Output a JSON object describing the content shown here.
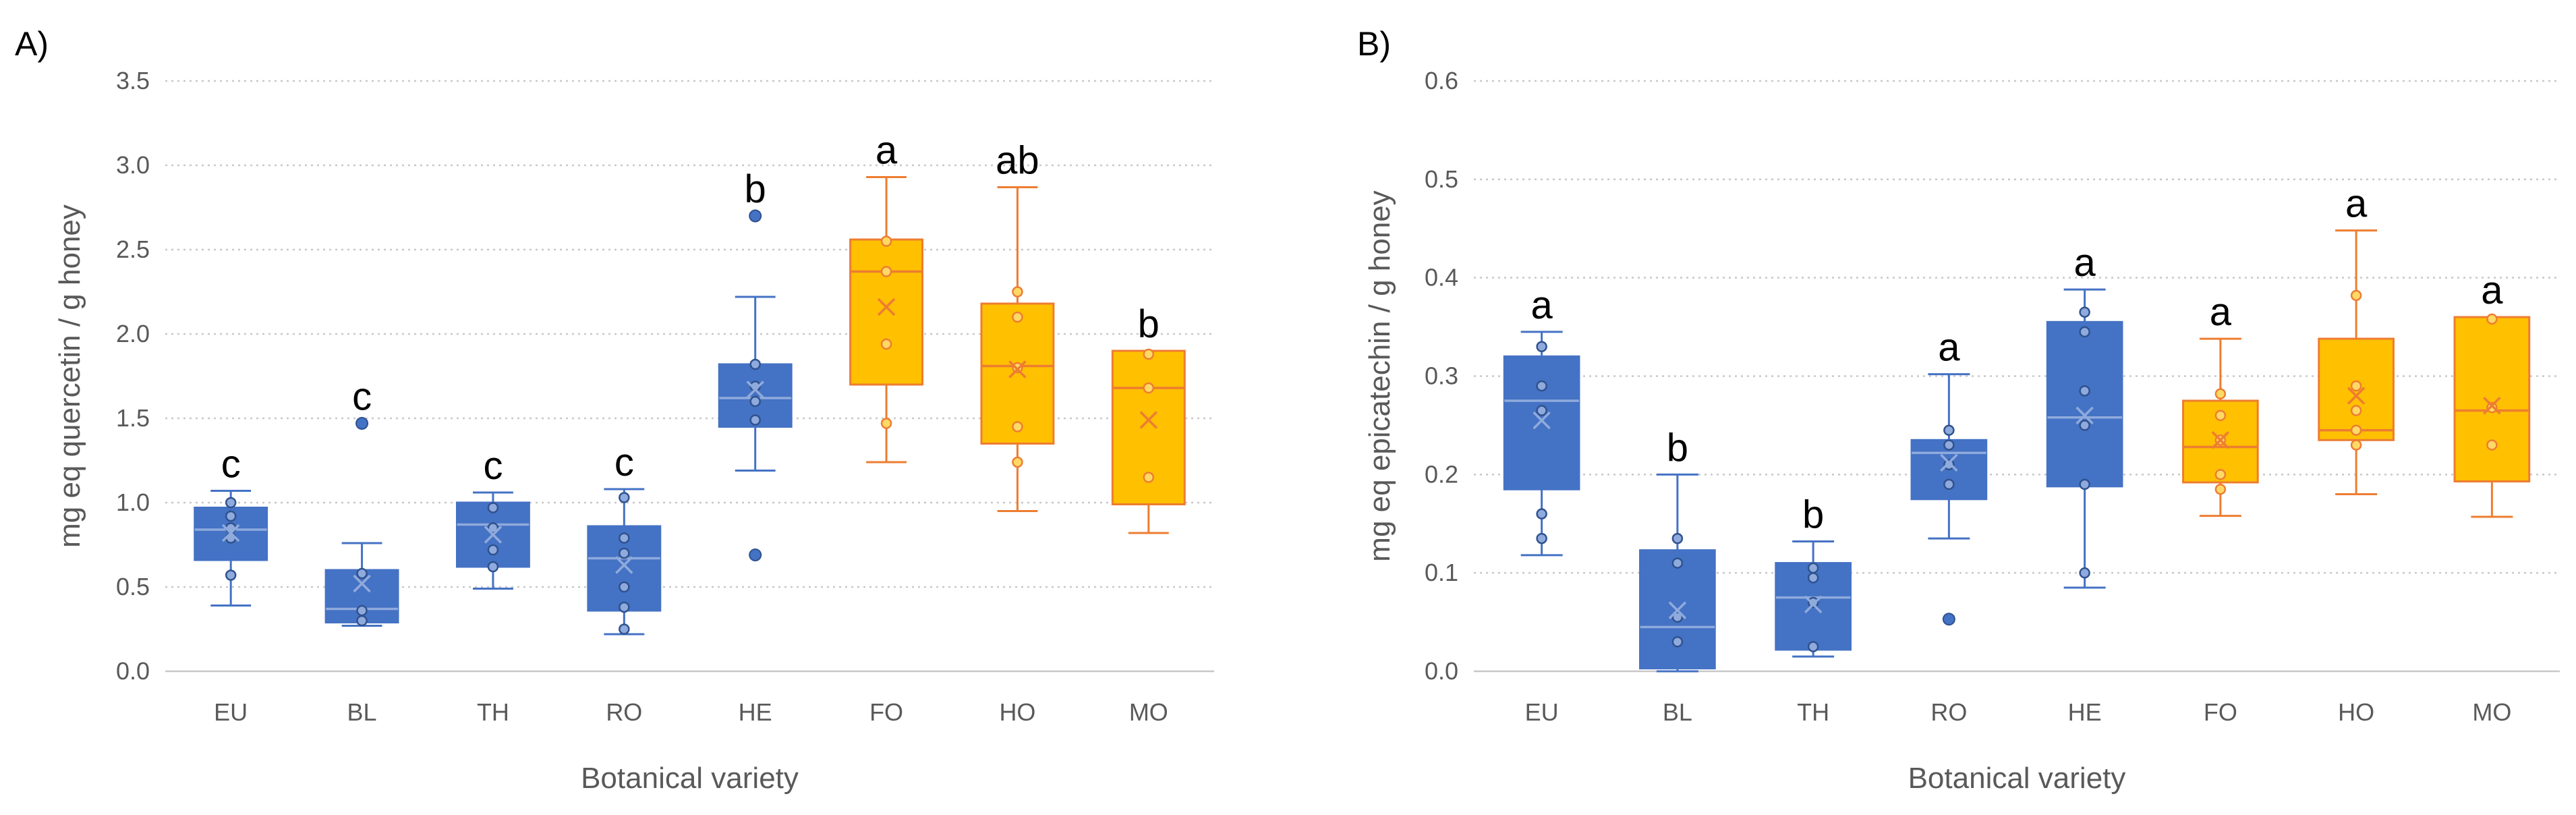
{
  "chart_data": [
    {
      "type": "box",
      "panel_label": "A)",
      "xlabel": "Botanical variety",
      "ylabel": "mg eq quercetin / g honey",
      "ylim": [
        0,
        3.5
      ],
      "yticks": [
        "0.0",
        "0.5",
        "1.0",
        "1.5",
        "2.0",
        "2.5",
        "3.0",
        "3.5"
      ],
      "grid": "horizontal dotted",
      "colors": {
        "blue": "#4472C4",
        "orange": "#FFC000",
        "orange_edge": "#ED7D31"
      },
      "categories": [
        {
          "label": "EU",
          "color": "blue",
          "letter": "c",
          "whisker_low": 0.39,
          "q1": 0.66,
          "median": 0.84,
          "q3": 0.97,
          "whisker_high": 1.07,
          "mean": 0.82,
          "points": [
            0.57,
            0.79,
            0.85,
            0.92,
            1.0
          ],
          "outliers": []
        },
        {
          "label": "BL",
          "color": "blue",
          "letter": "c",
          "whisker_low": 0.27,
          "q1": 0.29,
          "median": 0.37,
          "q3": 0.6,
          "whisker_high": 0.76,
          "mean": 0.52,
          "points": [
            0.3,
            0.36,
            0.58
          ],
          "outliers": [
            1.47
          ]
        },
        {
          "label": "TH",
          "color": "blue",
          "letter": "c",
          "whisker_low": 0.49,
          "q1": 0.62,
          "median": 0.87,
          "q3": 1.0,
          "whisker_high": 1.06,
          "mean": 0.81,
          "points": [
            0.62,
            0.72,
            0.85,
            0.97
          ],
          "outliers": []
        },
        {
          "label": "RO",
          "color": "blue",
          "letter": "c",
          "whisker_low": 0.22,
          "q1": 0.36,
          "median": 0.67,
          "q3": 0.86,
          "whisker_high": 1.08,
          "mean": 0.63,
          "points": [
            0.25,
            0.38,
            0.5,
            0.7,
            0.79,
            1.03
          ],
          "outliers": []
        },
        {
          "label": "HE",
          "color": "blue",
          "letter": "b",
          "whisker_low": 1.19,
          "q1": 1.45,
          "median": 1.62,
          "q3": 1.82,
          "whisker_high": 2.22,
          "mean": 1.67,
          "points": [
            1.49,
            1.6,
            1.69,
            1.82
          ],
          "outliers": [
            0.69,
            2.7
          ]
        },
        {
          "label": "FO",
          "color": "orange",
          "letter": "a",
          "whisker_low": 1.24,
          "q1": 1.7,
          "median": 2.37,
          "q3": 2.56,
          "whisker_high": 2.93,
          "mean": 2.16,
          "points": [
            1.47,
            1.94,
            2.37,
            2.55
          ],
          "outliers": []
        },
        {
          "label": "HO",
          "color": "orange",
          "letter": "ab",
          "whisker_low": 0.95,
          "q1": 1.35,
          "median": 1.81,
          "q3": 2.18,
          "whisker_high": 2.87,
          "mean": 1.79,
          "points": [
            1.24,
            1.45,
            1.8,
            2.1,
            2.25
          ],
          "outliers": []
        },
        {
          "label": "MO",
          "color": "orange",
          "letter": "b",
          "whisker_low": 0.82,
          "q1": 0.99,
          "median": 1.68,
          "q3": 1.9,
          "whisker_high": 1.9,
          "mean": 1.49,
          "points": [
            1.15,
            1.68,
            1.88
          ],
          "outliers": []
        }
      ]
    },
    {
      "type": "box",
      "panel_label": "B)",
      "xlabel": "Botanical variety",
      "ylabel": "mg eq epicatechin / g honey",
      "ylim": [
        0,
        0.6
      ],
      "yticks": [
        "0.0",
        "0.1",
        "0.2",
        "0.3",
        "0.4",
        "0.5",
        "0.6"
      ],
      "grid": "horizontal dotted",
      "colors": {
        "blue": "#4472C4",
        "orange": "#FFC000",
        "orange_edge": "#ED7D31"
      },
      "categories": [
        {
          "label": "EU",
          "color": "blue",
          "letter": "a",
          "whisker_low": 0.118,
          "q1": 0.185,
          "median": 0.275,
          "q3": 0.32,
          "whisker_high": 0.345,
          "mean": 0.255,
          "points": [
            0.135,
            0.16,
            0.265,
            0.29,
            0.33
          ],
          "outliers": []
        },
        {
          "label": "BL",
          "color": "blue",
          "letter": "b",
          "whisker_low": 0.0,
          "q1": 0.003,
          "median": 0.045,
          "q3": 0.123,
          "whisker_high": 0.2,
          "mean": 0.062,
          "points": [
            0.03,
            0.055,
            0.11,
            0.135
          ],
          "outliers": []
        },
        {
          "label": "TH",
          "color": "blue",
          "letter": "b",
          "whisker_low": 0.015,
          "q1": 0.022,
          "median": 0.075,
          "q3": 0.11,
          "whisker_high": 0.132,
          "mean": 0.068,
          "points": [
            0.025,
            0.07,
            0.095,
            0.105
          ],
          "outliers": []
        },
        {
          "label": "RO",
          "color": "blue",
          "letter": "a",
          "whisker_low": 0.135,
          "q1": 0.175,
          "median": 0.222,
          "q3": 0.235,
          "whisker_high": 0.302,
          "mean": 0.212,
          "points": [
            0.19,
            0.21,
            0.23,
            0.245
          ],
          "outliers": [
            0.053
          ]
        },
        {
          "label": "HE",
          "color": "blue",
          "letter": "a",
          "whisker_low": 0.085,
          "q1": 0.188,
          "median": 0.258,
          "q3": 0.355,
          "whisker_high": 0.388,
          "mean": 0.26,
          "points": [
            0.1,
            0.19,
            0.25,
            0.285,
            0.345,
            0.365
          ],
          "outliers": []
        },
        {
          "label": "FO",
          "color": "orange",
          "letter": "a",
          "whisker_low": 0.158,
          "q1": 0.192,
          "median": 0.228,
          "q3": 0.275,
          "whisker_high": 0.338,
          "mean": 0.235,
          "points": [
            0.185,
            0.2,
            0.235,
            0.26,
            0.282
          ],
          "outliers": []
        },
        {
          "label": "HO",
          "color": "orange",
          "letter": "a",
          "whisker_low": 0.18,
          "q1": 0.235,
          "median": 0.245,
          "q3": 0.338,
          "whisker_high": 0.448,
          "mean": 0.28,
          "points": [
            0.23,
            0.245,
            0.265,
            0.29,
            0.382
          ],
          "outliers": []
        },
        {
          "label": "MO",
          "color": "orange",
          "letter": "a",
          "whisker_low": 0.157,
          "q1": 0.193,
          "median": 0.265,
          "q3": 0.36,
          "whisker_high": 0.36,
          "mean": 0.27,
          "points": [
            0.23,
            0.268,
            0.358
          ],
          "outliers": []
        }
      ]
    }
  ]
}
